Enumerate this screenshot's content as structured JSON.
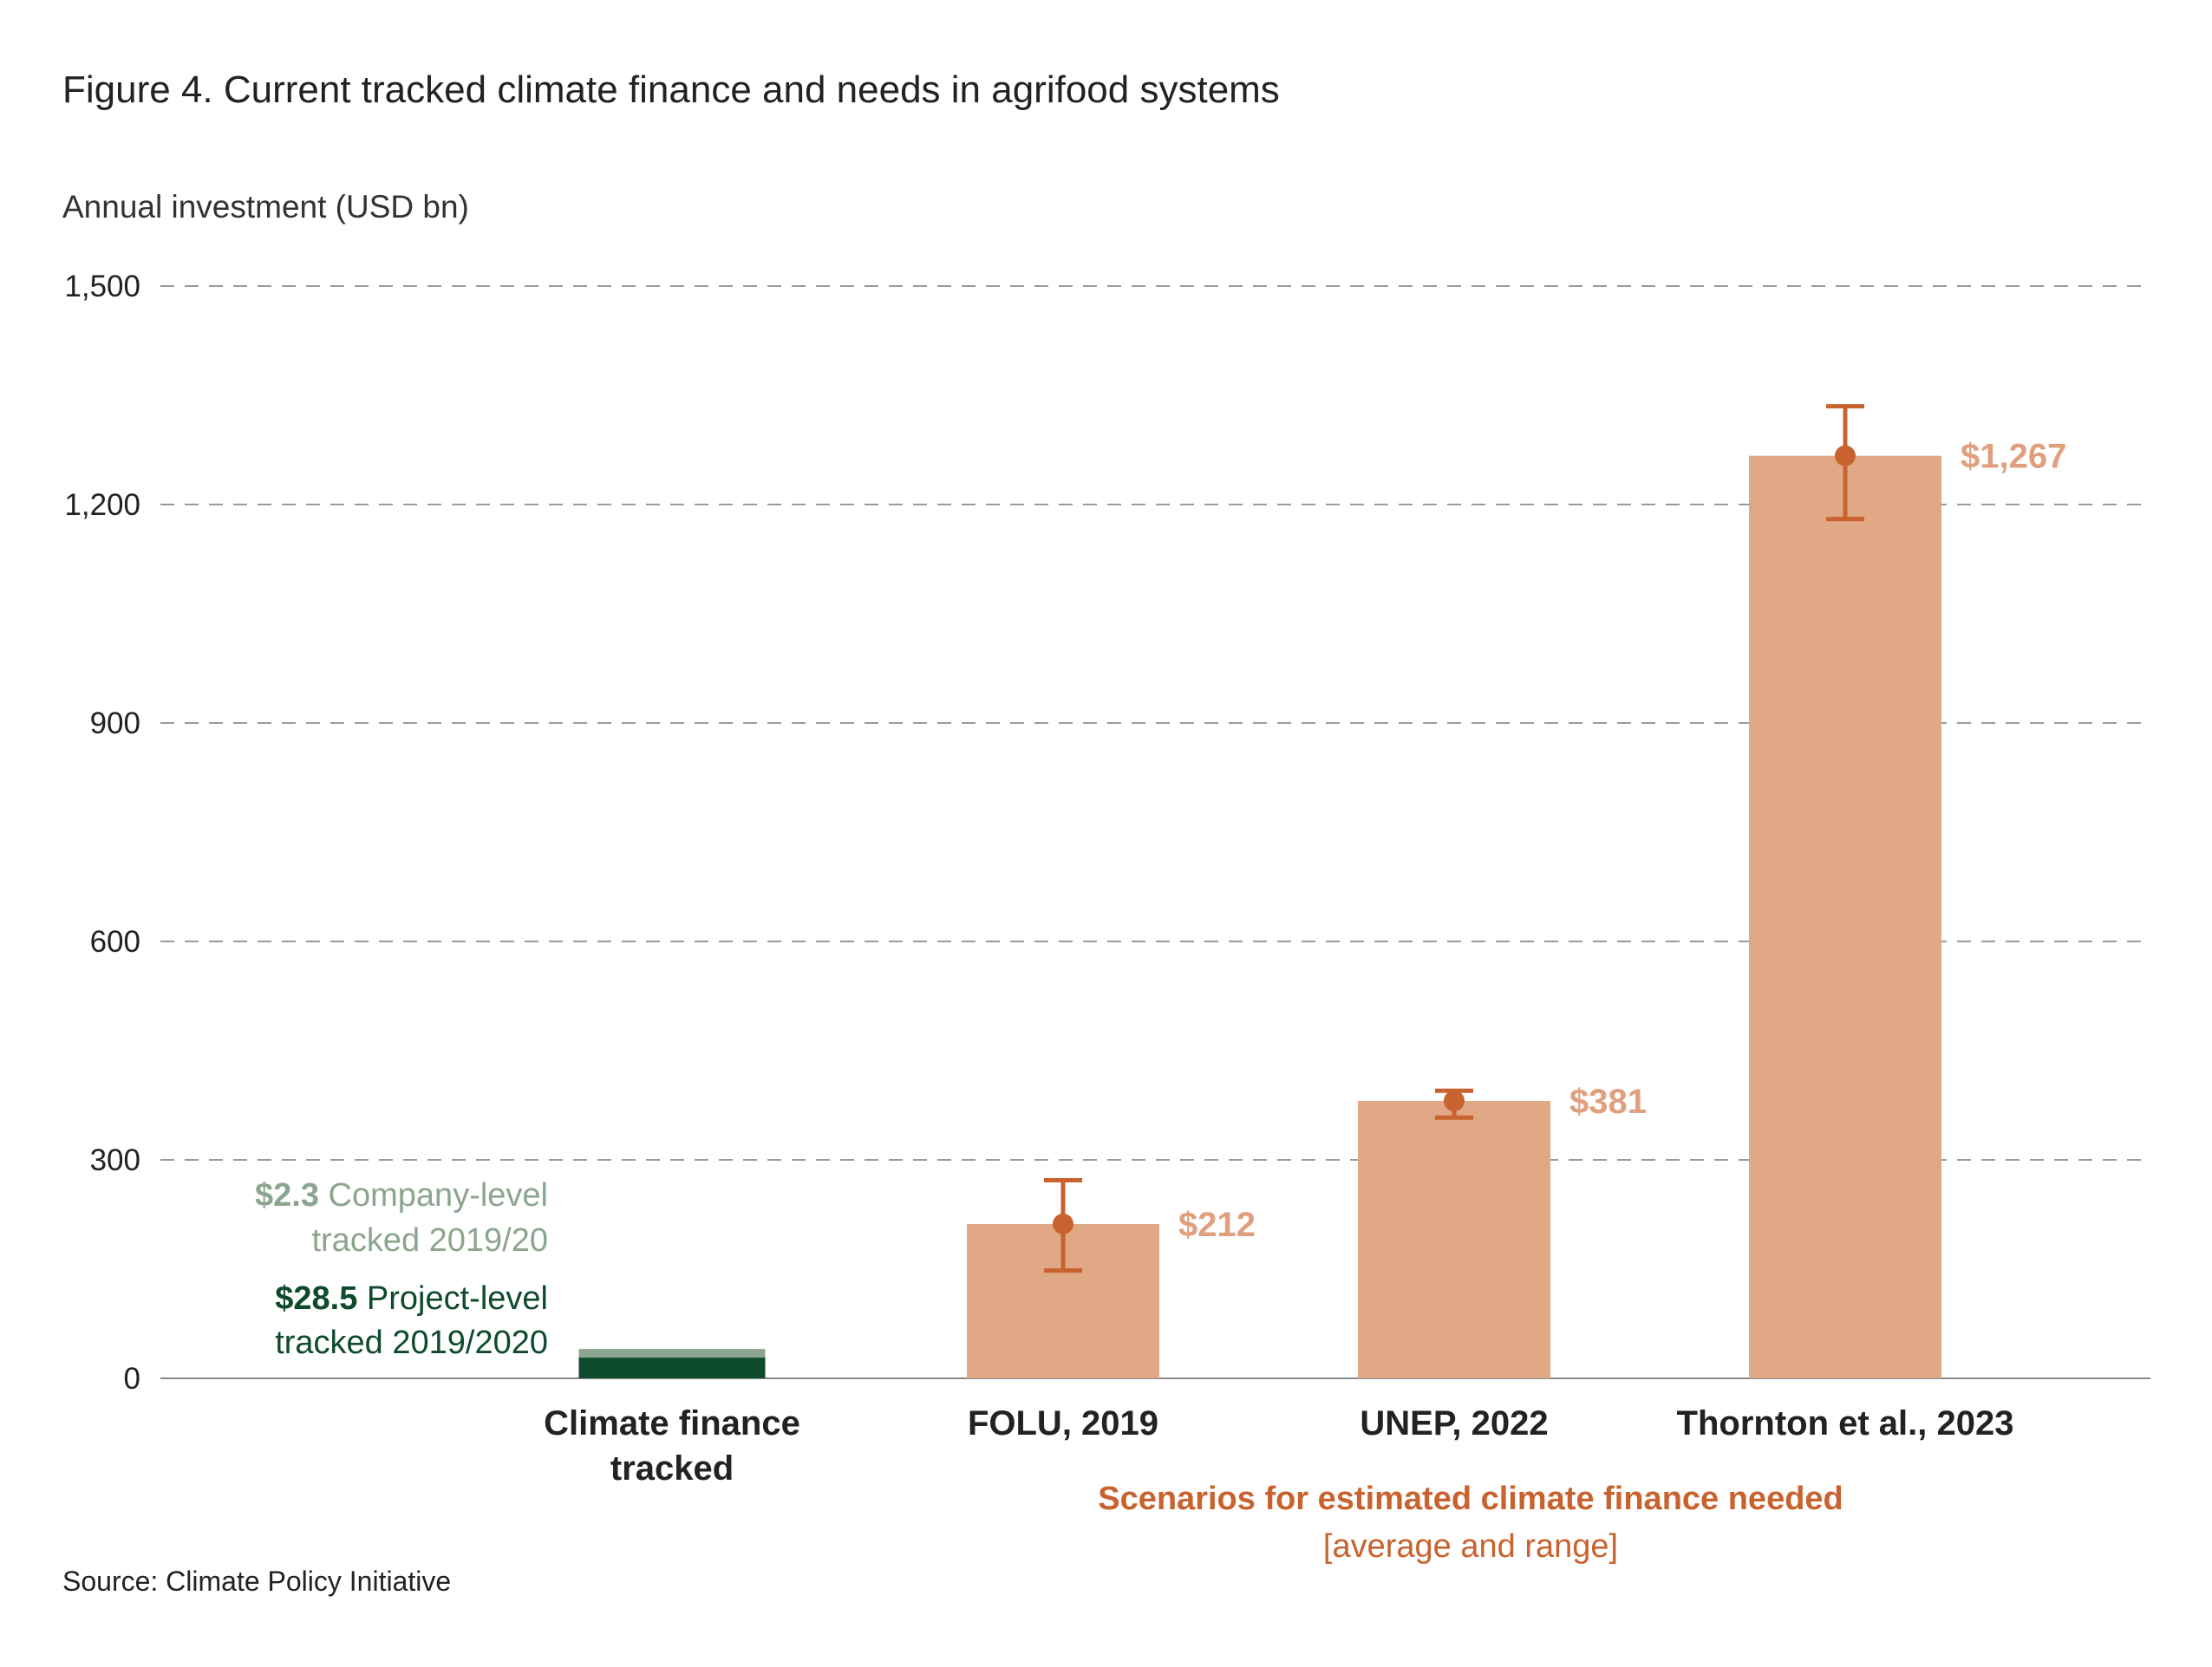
{
  "title": "Figure 4. Current tracked climate finance and needs in agrifood systems",
  "source": "Source: Climate Policy Initiative",
  "annotations": {
    "company_value": "$2.3",
    "company_line1": " Company-level",
    "company_line2": "tracked 2019/20",
    "project_value": "$28.5",
    "project_line1": " Project-level",
    "project_line2": "tracked 2019/2020"
  },
  "group_label": {
    "title": "Scenarios for estimated climate finance needed",
    "subtitle": "[average and range]"
  },
  "colors": {
    "company": "#8CA58E",
    "project": "#0E4A2C",
    "needs_bar": "#E0A884",
    "error_bar": "#C8622E",
    "value_label": "#E0A07E",
    "grid": "#9A9A9A"
  },
  "chart_data": {
    "type": "bar",
    "ylabel": "Annual investment (USD bn)",
    "ylim": [
      0,
      1500
    ],
    "yticks": [
      0,
      300,
      600,
      900,
      1200,
      1500
    ],
    "ytick_labels": [
      "0",
      "300",
      "600",
      "900",
      "1,200",
      "1,500"
    ],
    "grid": true,
    "categories": [
      {
        "lines": [
          "Climate finance",
          "tracked"
        ]
      },
      {
        "lines": [
          "FOLU, 2019"
        ]
      },
      {
        "lines": [
          "UNEP, 2022"
        ]
      },
      {
        "lines": [
          "Thornton et al., 2023"
        ]
      }
    ],
    "tracked": {
      "project_level": 28.5,
      "company_level": 2.3
    },
    "needs": [
      {
        "category_index": 1,
        "value": 212,
        "label": "$212",
        "range": [
          148,
          272
        ]
      },
      {
        "category_index": 2,
        "value": 381,
        "label": "$381",
        "range": [
          358,
          395
        ]
      },
      {
        "category_index": 3,
        "value": 1267,
        "label": "$1,267",
        "range": [
          1180,
          1335
        ]
      }
    ]
  }
}
